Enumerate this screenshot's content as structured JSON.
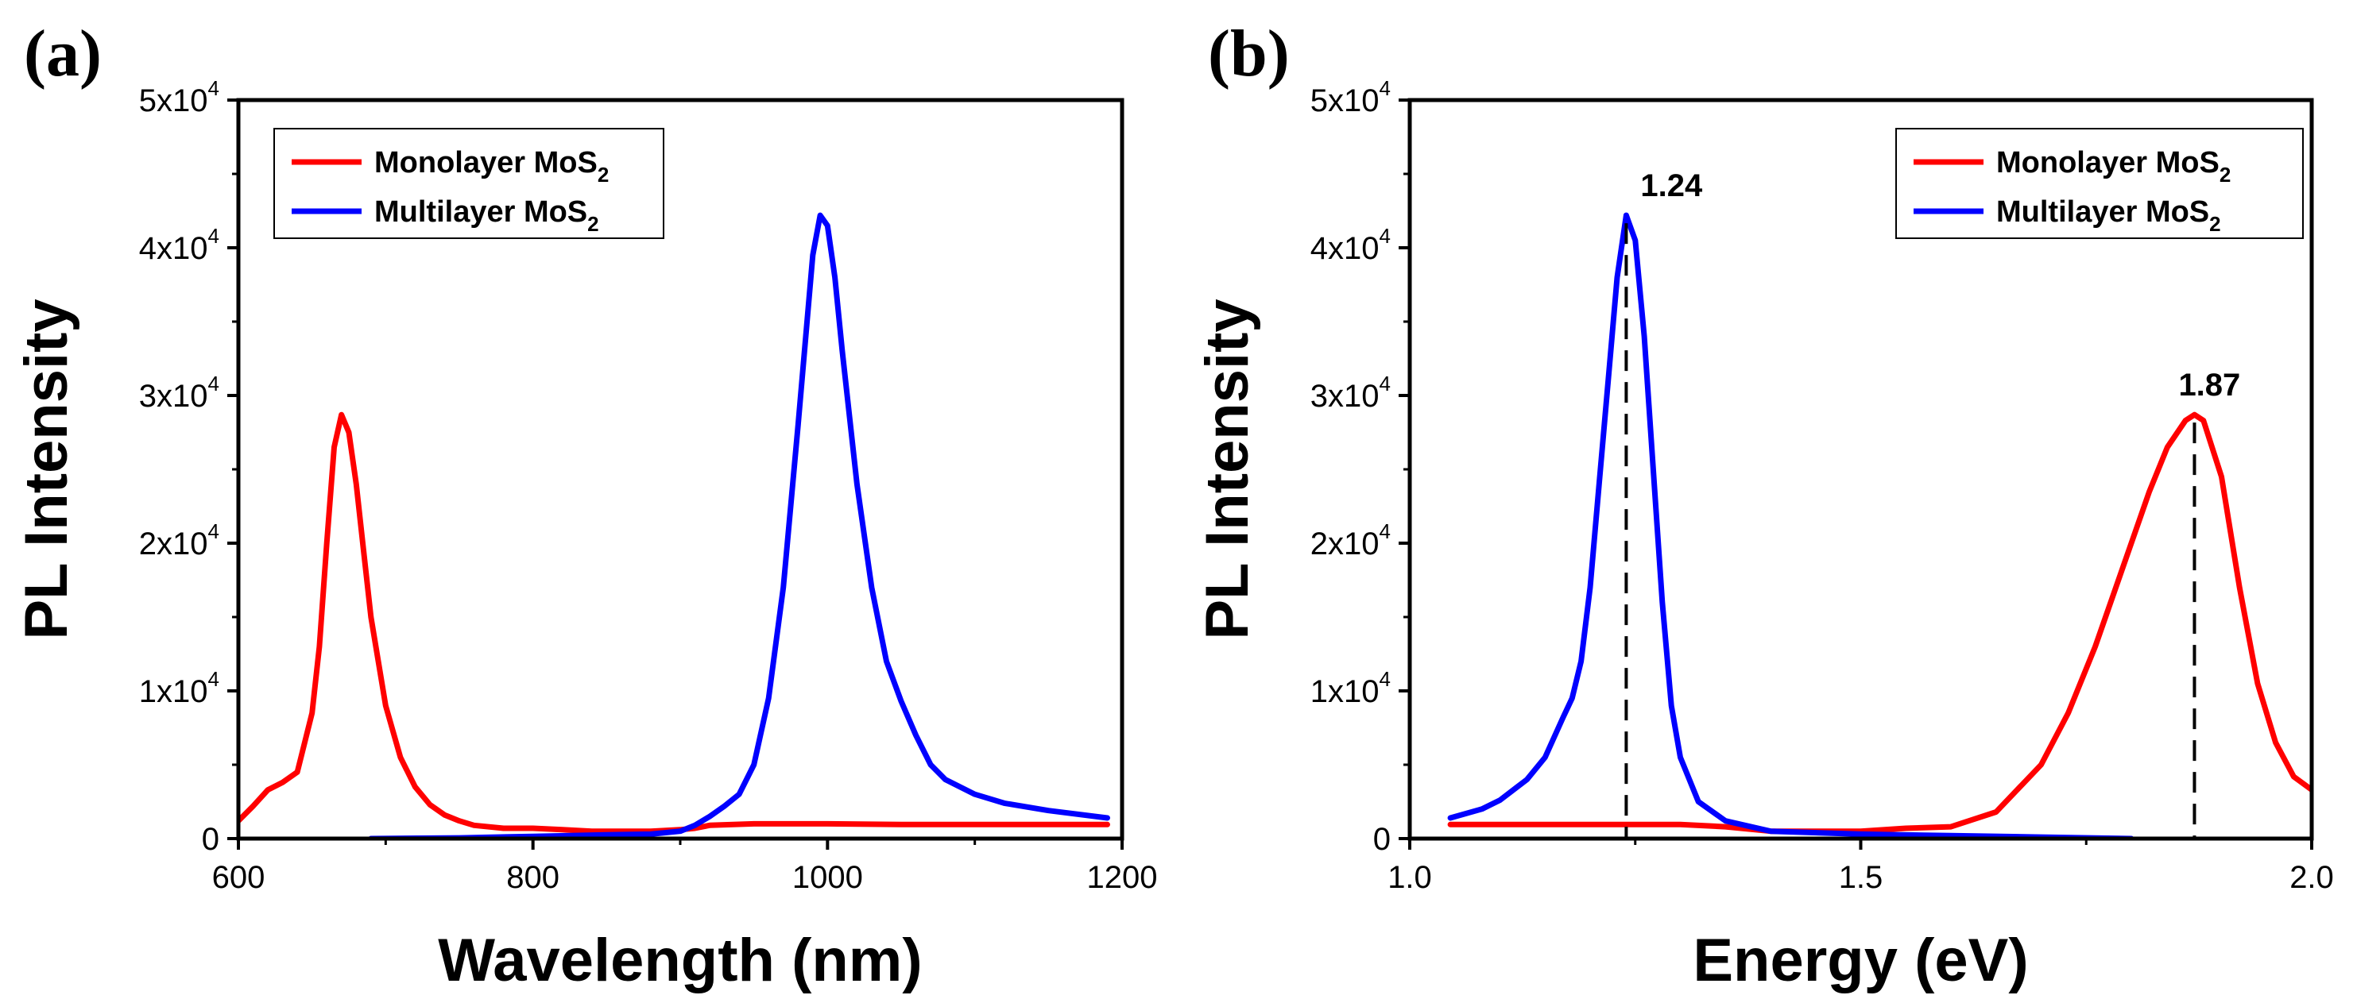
{
  "chart_data": [
    {
      "panel": "(a)",
      "type": "line",
      "xlabel": "Wavelength (nm)",
      "ylabel": "PL Intensity",
      "xlim": [
        600,
        1200
      ],
      "ylim": [
        0,
        50000
      ],
      "xticks": [
        600,
        800,
        1000,
        1200
      ],
      "yticks": [
        {
          "value": 0,
          "mantissa": "0",
          "exp": ""
        },
        {
          "value": 10000,
          "mantissa": "1x10",
          "exp": "4"
        },
        {
          "value": 20000,
          "mantissa": "2x10",
          "exp": "4"
        },
        {
          "value": 30000,
          "mantissa": "3x10",
          "exp": "4"
        },
        {
          "value": 40000,
          "mantissa": "4x10",
          "exp": "4"
        },
        {
          "value": 50000,
          "mantissa": "5x10",
          "exp": "4"
        }
      ],
      "legend": "top-left",
      "series": [
        {
          "name": "Monolayer MoS",
          "name_sub": "2",
          "color": "#ff0000",
          "x": [
            600,
            610,
            620,
            630,
            640,
            650,
            655,
            660,
            665,
            670,
            675,
            680,
            685,
            690,
            700,
            710,
            720,
            730,
            740,
            750,
            760,
            780,
            800,
            820,
            840,
            860,
            880,
            900,
            910,
            920,
            950,
            1000,
            1050,
            1100,
            1150,
            1190
          ],
          "y": [
            1200,
            2200,
            3300,
            3800,
            4500,
            8500,
            13000,
            20000,
            26500,
            28700,
            27500,
            24000,
            19500,
            15000,
            9000,
            5500,
            3500,
            2300,
            1600,
            1200,
            900,
            700,
            700,
            600,
            500,
            500,
            500,
            600,
            700,
            900,
            1000,
            1000,
            950,
            950,
            950,
            950
          ]
        },
        {
          "name": "Multilayer MoS",
          "name_sub": "2",
          "color": "#0000ff",
          "x": [
            690,
            750,
            800,
            850,
            880,
            900,
            910,
            920,
            930,
            940,
            950,
            960,
            970,
            980,
            990,
            995,
            1000,
            1005,
            1010,
            1020,
            1030,
            1040,
            1050,
            1060,
            1070,
            1080,
            1100,
            1120,
            1150,
            1190
          ],
          "y": [
            0,
            50,
            150,
            250,
            300,
            500,
            900,
            1500,
            2200,
            3000,
            5000,
            9500,
            17000,
            28000,
            39500,
            42200,
            41500,
            38000,
            33000,
            24000,
            17000,
            12000,
            9300,
            7000,
            5000,
            4000,
            3000,
            2400,
            1900,
            1400
          ]
        }
      ]
    },
    {
      "panel": "(b)",
      "type": "line",
      "xlabel": "Energy (eV)",
      "ylabel": "PL Intensity",
      "xlim": [
        1.0,
        2.0
      ],
      "ylim": [
        0,
        50000
      ],
      "xticks": [
        1.0,
        1.5,
        2.0
      ],
      "yticks": [
        {
          "value": 0,
          "mantissa": "0",
          "exp": ""
        },
        {
          "value": 10000,
          "mantissa": "1x10",
          "exp": "4"
        },
        {
          "value": 20000,
          "mantissa": "2x10",
          "exp": "4"
        },
        {
          "value": 30000,
          "mantissa": "3x10",
          "exp": "4"
        },
        {
          "value": 40000,
          "mantissa": "4x10",
          "exp": "4"
        },
        {
          "value": 50000,
          "mantissa": "5x10",
          "exp": "4"
        }
      ],
      "legend": "top-right",
      "annotations": [
        {
          "x": 1.24,
          "y": 42200,
          "label": "1.24"
        },
        {
          "x": 1.87,
          "y": 28700,
          "label": "1.87"
        }
      ],
      "series": [
        {
          "name": "Monolayer MoS",
          "name_sub": "2",
          "color": "#ff0000",
          "x": [
            1.045,
            1.1,
            1.2,
            1.3,
            1.35,
            1.4,
            1.45,
            1.5,
            1.55,
            1.6,
            1.65,
            1.7,
            1.73,
            1.76,
            1.78,
            1.8,
            1.82,
            1.84,
            1.86,
            1.87,
            1.88,
            1.9,
            1.92,
            1.94,
            1.96,
            1.98,
            2.0
          ],
          "y": [
            950,
            950,
            950,
            950,
            800,
            500,
            500,
            500,
            700,
            800,
            1800,
            5000,
            8500,
            13000,
            16500,
            20000,
            23500,
            26500,
            28300,
            28700,
            28300,
            24500,
            17000,
            10500,
            6500,
            4200,
            3300
          ]
        },
        {
          "name": "Multilayer MoS",
          "name_sub": "2",
          "color": "#0000ff",
          "x": [
            1.045,
            1.08,
            1.1,
            1.13,
            1.15,
            1.17,
            1.18,
            1.19,
            1.2,
            1.21,
            1.22,
            1.23,
            1.24,
            1.25,
            1.26,
            1.27,
            1.28,
            1.29,
            1.3,
            1.32,
            1.35,
            1.4,
            1.5,
            1.6,
            1.7,
            1.8
          ],
          "y": [
            1400,
            2000,
            2600,
            4000,
            5500,
            8200,
            9500,
            12000,
            17000,
            24000,
            31000,
            38000,
            42200,
            40500,
            34000,
            25000,
            16000,
            9000,
            5500,
            2500,
            1200,
            500,
            300,
            200,
            100,
            0
          ]
        }
      ]
    }
  ]
}
